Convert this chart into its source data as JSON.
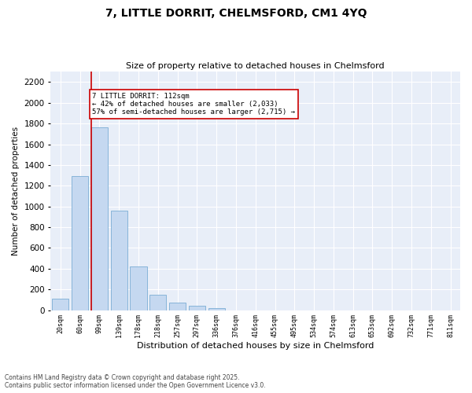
{
  "title1": "7, LITTLE DORRIT, CHELMSFORD, CM1 4YQ",
  "title2": "Size of property relative to detached houses in Chelmsford",
  "xlabel": "Distribution of detached houses by size in Chelmsford",
  "ylabel": "Number of detached properties",
  "categories": [
    "20sqm",
    "60sqm",
    "99sqm",
    "139sqm",
    "178sqm",
    "218sqm",
    "257sqm",
    "297sqm",
    "336sqm",
    "376sqm",
    "416sqm",
    "455sqm",
    "495sqm",
    "534sqm",
    "574sqm",
    "613sqm",
    "653sqm",
    "692sqm",
    "732sqm",
    "771sqm",
    "811sqm"
  ],
  "values": [
    110,
    1290,
    1760,
    960,
    420,
    150,
    70,
    40,
    20,
    0,
    0,
    0,
    0,
    0,
    0,
    0,
    0,
    0,
    0,
    0,
    0
  ],
  "bar_color": "#c5d8f0",
  "bar_edge_color": "#7badd4",
  "red_line_index": 2,
  "annotation_lines": [
    "7 LITTLE DORRIT: 112sqm",
    "← 42% of detached houses are smaller (2,033)",
    "57% of semi-detached houses are larger (2,715) →"
  ],
  "ylim": [
    0,
    2300
  ],
  "yticks": [
    0,
    200,
    400,
    600,
    800,
    1000,
    1200,
    1400,
    1600,
    1800,
    2000,
    2200
  ],
  "fig_bg_color": "#ffffff",
  "plot_bg_color": "#e8eef8",
  "grid_color": "#ffffff",
  "annotation_box_fill": "#ffffff",
  "annotation_box_edge": "#cc0000",
  "red_line_color": "#cc0000",
  "footer1": "Contains HM Land Registry data © Crown copyright and database right 2025.",
  "footer2": "Contains public sector information licensed under the Open Government Licence v3.0."
}
